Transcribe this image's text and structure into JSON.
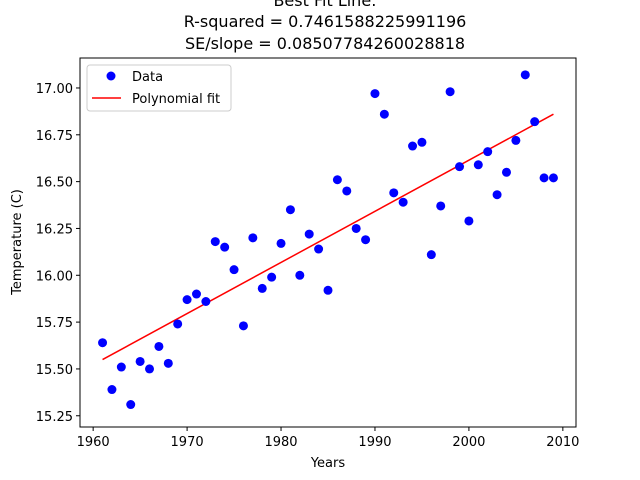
{
  "chart_data": {
    "type": "scatter",
    "title_lines": [
      "Best Fit Line:",
      "R-squared = 0.7461588225991196",
      "SE/slope = 0.08507784260028818"
    ],
    "xlabel": "Years",
    "ylabel": "Temperature (C)",
    "xlim": [
      1958.6,
      2011.4
    ],
    "ylim": [
      15.19,
      17.16
    ],
    "x_ticks": [
      1960,
      1970,
      1980,
      1990,
      2000,
      2010
    ],
    "y_ticks": [
      15.25,
      15.5,
      15.75,
      16.0,
      16.25,
      16.5,
      16.75,
      17.0
    ],
    "x_tick_labels": [
      "1960",
      "1970",
      "1980",
      "1990",
      "2000",
      "2010"
    ],
    "y_tick_labels": [
      "15.25",
      "15.50",
      "15.75",
      "16.00",
      "16.25",
      "16.50",
      "16.75",
      "17.00"
    ],
    "legend_position": "upper-left",
    "grid": false,
    "series": [
      {
        "name": "Data",
        "kind": "scatter",
        "color": "#0000ff",
        "x": [
          1961,
          1962,
          1963,
          1964,
          1965,
          1966,
          1967,
          1968,
          1969,
          1970,
          1971,
          1972,
          1973,
          1974,
          1975,
          1976,
          1977,
          1978,
          1979,
          1980,
          1981,
          1982,
          1983,
          1984,
          1985,
          1986,
          1987,
          1988,
          1989,
          1990,
          1991,
          1992,
          1993,
          1994,
          1995,
          1996,
          1997,
          1998,
          1999,
          2000,
          2001,
          2002,
          2003,
          2004,
          2005,
          2006,
          2007,
          2008,
          2009
        ],
        "y": [
          15.64,
          15.39,
          15.51,
          15.31,
          15.54,
          15.5,
          15.62,
          15.53,
          15.74,
          15.87,
          15.9,
          15.86,
          16.18,
          16.15,
          16.03,
          15.73,
          16.2,
          15.93,
          15.99,
          16.17,
          16.35,
          16.0,
          16.22,
          16.14,
          15.92,
          16.51,
          16.45,
          16.25,
          16.19,
          16.97,
          16.86,
          16.44,
          16.39,
          16.69,
          16.71,
          16.11,
          16.37,
          16.98,
          16.58,
          16.29,
          16.59,
          16.66,
          16.43,
          16.55,
          16.72,
          17.07,
          16.82,
          16.52,
          16.52
        ]
      },
      {
        "name": "Polynomial fit",
        "kind": "line",
        "color": "#ff0000",
        "x": [
          1961,
          2009
        ],
        "y": [
          15.55,
          16.86
        ]
      }
    ]
  }
}
